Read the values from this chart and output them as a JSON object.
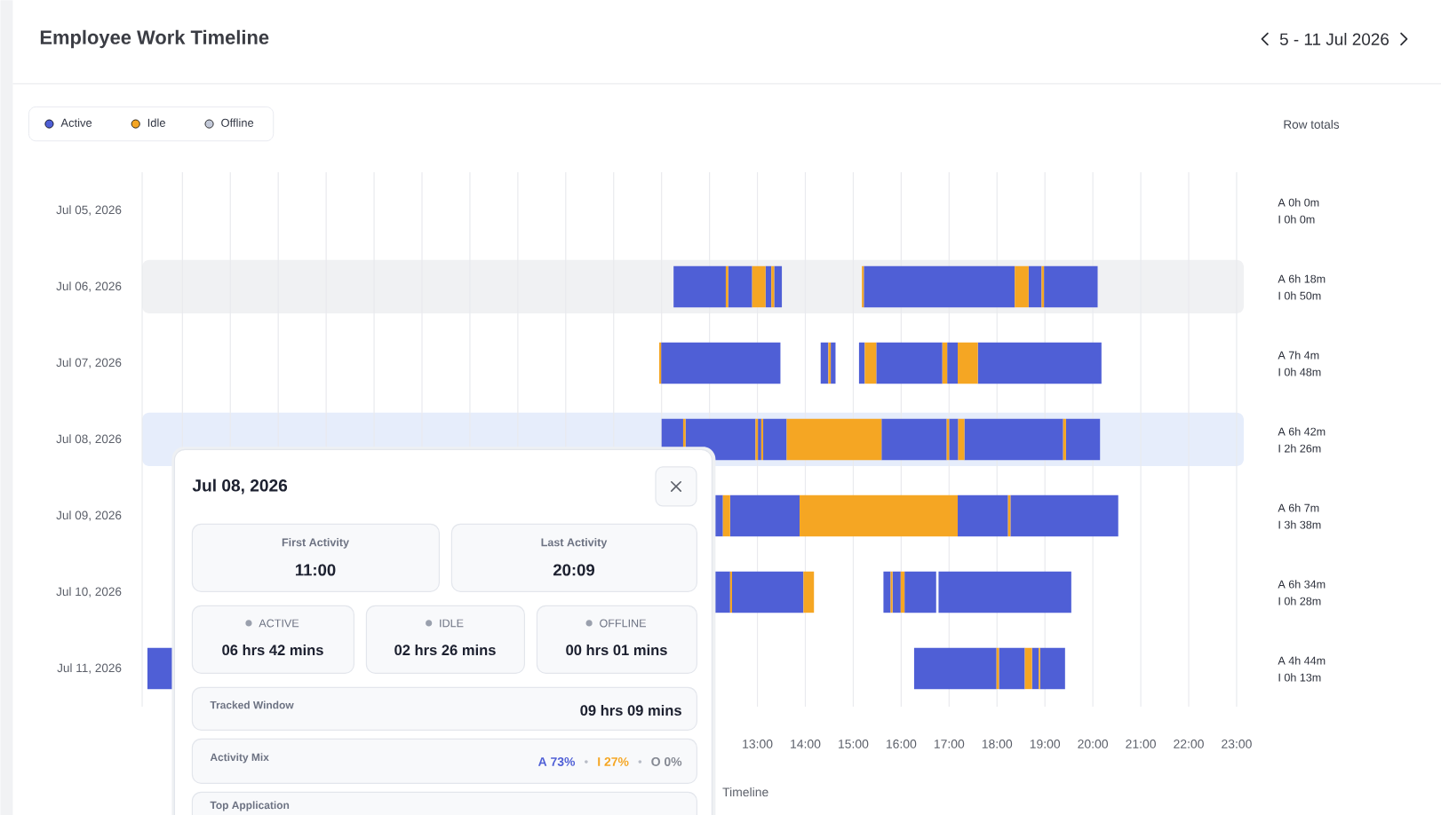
{
  "chart_data": {
    "type": "bar",
    "orientation": "horizontal",
    "title": "Employee Work Timeline",
    "subtitle": "5 - 11 Jul 2026",
    "xlabel": "Timeline",
    "categories": [
      "Jul 05, 2026",
      "Jul 06, 2026",
      "Jul 07, 2026",
      "Jul 08, 2026",
      "Jul 09, 2026",
      "Jul 10, 2026",
      "Jul 11, 2026"
    ],
    "xlim": [
      0.16,
      23.15
    ],
    "xticks": [
      {
        "value": 1,
        "label": null
      },
      {
        "value": 2,
        "label": null
      },
      {
        "value": 3,
        "label": null
      },
      {
        "value": 4,
        "label": null
      },
      {
        "value": 5,
        "label": null
      },
      {
        "value": 6,
        "label": null
      },
      {
        "value": 7,
        "label": null
      },
      {
        "value": 8,
        "label": null
      },
      {
        "value": 9,
        "label": null
      },
      {
        "value": 10,
        "label": null
      },
      {
        "value": 11,
        "label": null
      },
      {
        "value": 12,
        "label": null
      },
      {
        "value": 13,
        "label": "13:00"
      },
      {
        "value": 14,
        "label": "14:00"
      },
      {
        "value": 15,
        "label": "15:00"
      },
      {
        "value": 16,
        "label": "16:00"
      },
      {
        "value": 17,
        "label": "17:00"
      },
      {
        "value": 18,
        "label": "18:00"
      },
      {
        "value": 19,
        "label": "19:00"
      },
      {
        "value": 20,
        "label": "20:00"
      },
      {
        "value": 21,
        "label": "21:00"
      },
      {
        "value": 22,
        "label": "22:00"
      },
      {
        "value": 23,
        "label": "23:00"
      }
    ],
    "grid": "x",
    "legend": "top left",
    "series": [
      {
        "name": "Active",
        "color": "#4f5fd6",
        "base": [
          null,
          11.25,
          10.99,
          11.0,
          12.05,
          12.07,
          0.27
        ],
        "values": [
          null,
          1.09,
          2.49,
          0.45,
          0.23,
          0.36,
          0.53
        ]
      },
      {
        "color": "#4f5fd6",
        "base": [
          null,
          12.39,
          14.32,
          11.5,
          12.43,
          12.47,
          16.27
        ],
        "values": [
          null,
          0.5,
          0.16,
          1.46,
          1.45,
          1.49,
          1.72
        ]
      },
      {
        "color": "#4f5fd6",
        "base": [
          null,
          13.17,
          14.53,
          13.01,
          17.18,
          15.63,
          18.04
        ],
        "values": [
          null,
          0.12,
          0.1,
          0.07,
          1.05,
          0.15,
          0.54
        ]
      },
      {
        "color": "#4f5fd6",
        "base": [
          null,
          13.35,
          15.12,
          13.12,
          18.28,
          15.82,
          18.73
        ],
        "values": [
          null,
          0.16,
          0.12,
          0.49,
          2.25,
          0.17,
          0.14
        ]
      },
      {
        "color": "#4f5fd6",
        "base": [
          null,
          15.22,
          15.48,
          15.59,
          null,
          16.07,
          18.9
        ],
        "values": [
          null,
          3.15,
          1.38,
          1.36,
          null,
          0.66,
          0.52
        ]
      },
      {
        "color": "#4f5fd6",
        "base": [
          null,
          18.66,
          16.96,
          17.0,
          null,
          16.78,
          null
        ],
        "values": [
          null,
          0.27,
          0.22,
          0.19,
          null,
          2.77,
          null
        ]
      },
      {
        "color": "#4f5fd6",
        "base": [
          null,
          18.98,
          17.6,
          17.32,
          null,
          null,
          null
        ],
        "values": [
          null,
          1.12,
          2.58,
          2.06,
          null,
          null,
          null
        ]
      },
      {
        "color": "#4f5fd6",
        "base": [
          null,
          null,
          null,
          19.44,
          null,
          null,
          null
        ],
        "values": [
          null,
          null,
          null,
          0.71,
          null,
          null,
          null
        ]
      },
      {
        "name": "Idle",
        "color": "#f5a623",
        "base": [
          null,
          12.34,
          10.95,
          11.45,
          12.28,
          12.43,
          17.99
        ],
        "values": [
          null,
          0.05,
          0.04,
          0.05,
          0.15,
          0.04,
          0.05
        ]
      },
      {
        "color": "#f5a623",
        "base": [
          null,
          12.89,
          14.48,
          12.96,
          13.88,
          13.96,
          18.58
        ],
        "values": [
          null,
          0.28,
          0.05,
          0.05,
          3.3,
          0.22,
          0.15
        ]
      },
      {
        "color": "#f5a623",
        "base": [
          null,
          13.29,
          15.24,
          13.08,
          18.23,
          15.78,
          18.87
        ],
        "values": [
          null,
          0.06,
          0.24,
          0.04,
          0.05,
          0.04,
          0.03
        ]
      },
      {
        "color": "#f5a623",
        "base": [
          null,
          15.18,
          16.86,
          13.61,
          null,
          15.99,
          null
        ],
        "values": [
          null,
          0.04,
          0.1,
          1.98,
          null,
          0.08,
          null
        ]
      },
      {
        "color": "#f5a623",
        "base": [
          null,
          18.37,
          17.18,
          16.95,
          null,
          null,
          null
        ],
        "values": [
          null,
          0.29,
          0.42,
          0.05,
          null,
          null,
          null
        ]
      },
      {
        "color": "#f5a623",
        "base": [
          null,
          18.93,
          null,
          17.19,
          null,
          null,
          null
        ],
        "values": [
          null,
          0.05,
          null,
          0.13,
          null,
          null,
          null
        ]
      },
      {
        "color": "#f5a623",
        "base": [
          null,
          null,
          null,
          19.38,
          null,
          null,
          null
        ],
        "values": [
          null,
          null,
          null,
          0.06,
          null,
          null,
          null
        ]
      },
      {
        "name": "Offline",
        "color": "#c3c9d8",
        "values": [
          null,
          null,
          null,
          null,
          null,
          null,
          null
        ]
      }
    ],
    "bands": [
      {
        "axis": "y",
        "from": "Jul 06, 2026",
        "to": "Jul 06, 2026",
        "color": "#f0f1f3"
      },
      {
        "axis": "y",
        "from": "Jul 08, 2026",
        "to": "Jul 08, 2026",
        "color": "#e6edfb"
      }
    ],
    "annotations": [
      "Row totals",
      "A 0h 0m",
      "I 0h 0m",
      "A 6h 18m",
      "I 0h 50m",
      "A 7h 4m",
      "I 0h 48m",
      "A 6h 42m",
      "I 2h 26m",
      "A 6h 7m",
      "I 3h 38m",
      "A 6h 34m",
      "I 0h 28m",
      "A 4h 44m",
      "I 0h 13m",
      "Jul 08, 2026",
      "First Activity",
      "11:00",
      "Last Activity",
      "20:09",
      "ACTIVE",
      "06 hrs 42 mins",
      "IDLE",
      "02 hrs 26 mins",
      "OFFLINE",
      "00 hrs 01 mins",
      "Tracked Window",
      "09 hrs 09 mins",
      "Activity Mix",
      "A 73%",
      "I 27%",
      "O 0%",
      "Top Application"
    ]
  }
}
